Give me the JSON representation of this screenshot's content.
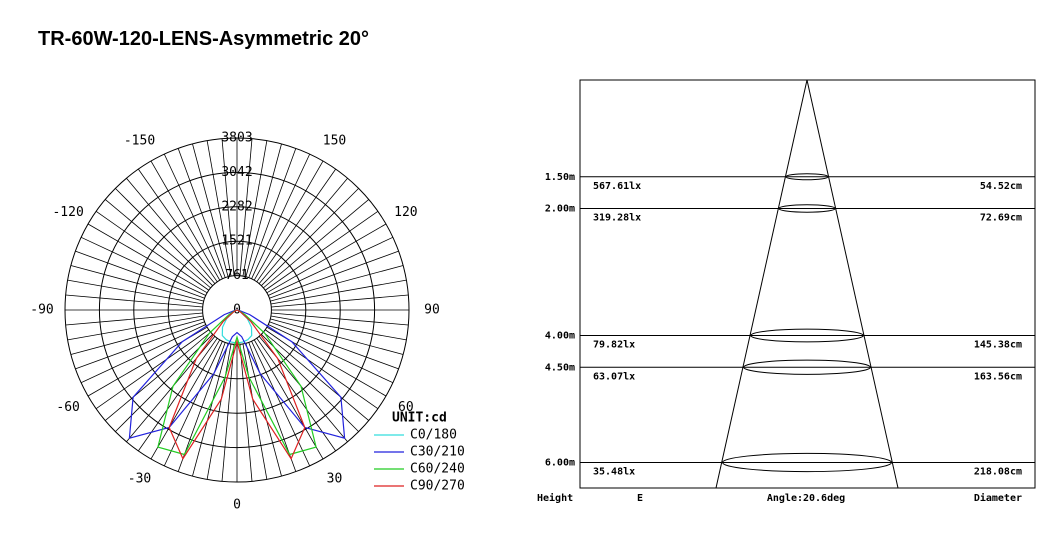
{
  "title": "TR-60W-120-LENS-Asymmetric 20°",
  "chart_data": {
    "type": "polar",
    "rlim": [
      0,
      3803
    ],
    "rticks": [
      0,
      761,
      1521,
      2282,
      3042,
      3803
    ],
    "angle_ticks": [
      -150,
      150,
      -120,
      120,
      -90,
      90,
      -60,
      60,
      -30,
      30,
      0
    ],
    "unit_label": "UNIT:cd",
    "x": [
      -90,
      -80,
      -70,
      -60,
      -50,
      -40,
      -30,
      -20,
      -10,
      0,
      10,
      20,
      30,
      40,
      50,
      60,
      70,
      80,
      90
    ],
    "series": [
      {
        "name": "C0/180",
        "color": "#33dddd",
        "values": [
          0,
          20,
          60,
          100,
          300,
          500,
          650,
          700,
          720,
          730,
          720,
          700,
          650,
          500,
          300,
          100,
          60,
          20,
          0
        ]
      },
      {
        "name": "C30/210",
        "color": "#2222dd",
        "values": [
          0,
          50,
          300,
          1400,
          3000,
          3700,
          3000,
          1500,
          600,
          500,
          600,
          1500,
          3000,
          3700,
          3000,
          1400,
          300,
          50,
          0
        ]
      },
      {
        "name": "C60/240",
        "color": "#22cc22",
        "values": [
          0,
          0,
          50,
          200,
          800,
          2200,
          3500,
          3400,
          1500,
          600,
          1500,
          3400,
          3500,
          2200,
          800,
          200,
          50,
          0,
          0
        ]
      },
      {
        "name": "C90/270",
        "color": "#dd2222",
        "values": [
          0,
          0,
          20,
          100,
          400,
          1400,
          3000,
          3500,
          2000,
          700,
          2000,
          3500,
          3000,
          1400,
          400,
          100,
          20,
          0,
          0
        ]
      }
    ]
  },
  "cone_diagram": {
    "rows": [
      {
        "height": {
          "value": 1.5,
          "label": "1.50m"
        },
        "illuminance": "567.61lx",
        "diameter": {
          "value": 54.52,
          "label": "54.52cm"
        }
      },
      {
        "height": {
          "value": 2.0,
          "label": "2.00m"
        },
        "illuminance": "319.28lx",
        "diameter": {
          "value": 72.69,
          "label": "72.69cm"
        }
      },
      {
        "height": {
          "value": 4.0,
          "label": "4.00m"
        },
        "illuminance": "79.82lx",
        "diameter": {
          "value": 145.38,
          "label": "145.38cm"
        }
      },
      {
        "height": {
          "value": 4.5,
          "label": "4.50m"
        },
        "illuminance": "63.07lx",
        "diameter": {
          "value": 163.56,
          "label": "163.56cm"
        }
      },
      {
        "height": {
          "value": 6.0,
          "label": "6.00m"
        },
        "illuminance": "35.48lx",
        "diameter": {
          "value": 218.08,
          "label": "218.08cm"
        }
      }
    ],
    "footer": {
      "height": "Height",
      "illuminance": "E",
      "angle": "Angle:20.6deg",
      "diameter": "Diameter"
    }
  }
}
